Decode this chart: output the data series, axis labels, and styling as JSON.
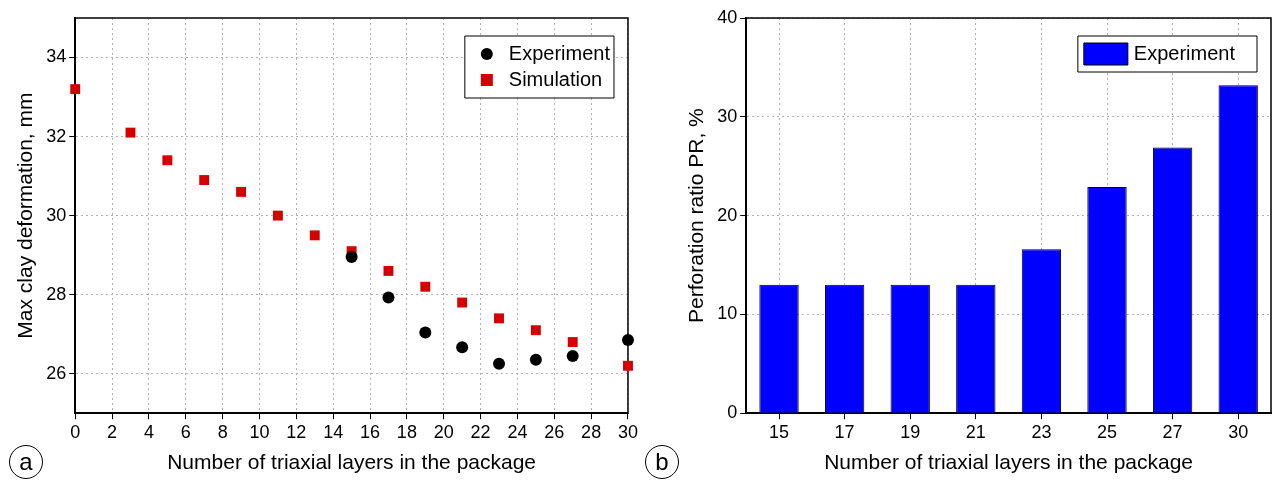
{
  "chart_data": [
    {
      "type": "scatter",
      "xlabel": "Number of triaxial layers in the package",
      "ylabel": "Max clay deformation, mm",
      "annotations": [
        "a"
      ],
      "series": [
        {
          "name": "Experiment",
          "color": "#000000",
          "marker": "circle",
          "x": [
            15,
            17,
            19,
            21,
            23,
            25,
            27,
            30
          ],
          "values": [
            28.95,
            27.93,
            27.04,
            26.67,
            26.25,
            26.35,
            26.45,
            26.85
          ]
        },
        {
          "name": "Simulation",
          "color": "#d40000",
          "marker": "square",
          "x": [
            0,
            3,
            5,
            7,
            9,
            11,
            13,
            15,
            17,
            19,
            21,
            23,
            25,
            27,
            30
          ],
          "values": [
            33.2,
            32.1,
            31.4,
            30.9,
            30.6,
            30.0,
            29.5,
            29.1,
            28.6,
            28.2,
            27.8,
            27.4,
            27.1,
            26.8,
            26.2
          ]
        }
      ],
      "xlim": [
        0,
        30
      ],
      "xticks": [
        0,
        2,
        4,
        6,
        8,
        10,
        12,
        14,
        16,
        18,
        20,
        22,
        24,
        26,
        28,
        30
      ],
      "ylim": [
        25,
        35
      ],
      "yticks": [
        26,
        28,
        30,
        32,
        34
      ],
      "grid": true,
      "legend": "top right"
    },
    {
      "type": "bar",
      "xlabel": "Number of triaxial layers in the package",
      "ylabel": "Perforation ratio PR, %",
      "annotations": [
        "b"
      ],
      "categories": [
        "15",
        "17",
        "19",
        "21",
        "23",
        "25",
        "27",
        "30"
      ],
      "series": [
        {
          "name": "Experiment",
          "color": "#0000ff",
          "values": [
            13,
            13,
            13,
            13,
            16.6,
            22.9,
            26.9,
            33.2
          ]
        }
      ],
      "ylim": [
        0,
        40
      ],
      "yticks": [
        0,
        10,
        20,
        30,
        40
      ],
      "grid": true,
      "legend": "top right"
    }
  ]
}
